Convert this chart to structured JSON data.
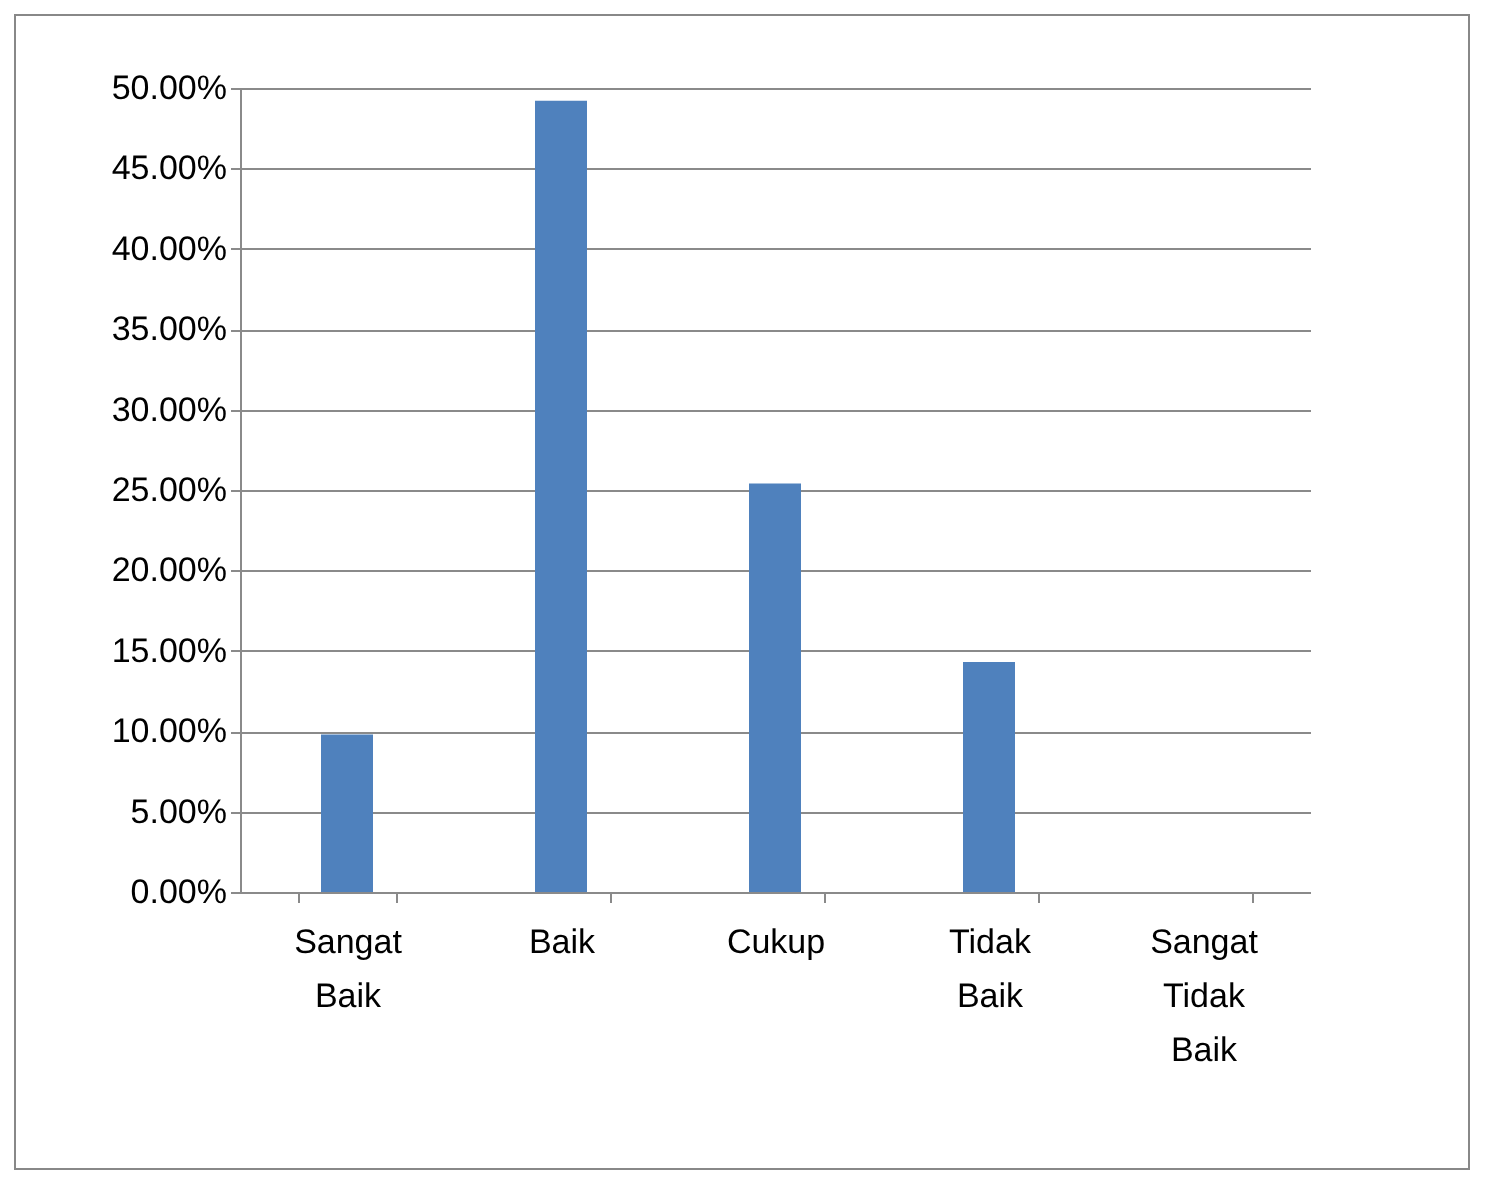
{
  "chart_data": {
    "type": "bar",
    "categories": [
      "Sangat Baik",
      "Baik",
      "Cukup",
      "Tidak Baik",
      "Sangat Tidak Baik"
    ],
    "values": [
      9.8,
      49.2,
      25.4,
      14.3,
      0
    ],
    "color": "#4f81bd",
    "ylim": [
      0,
      50
    ],
    "yticks": [
      {
        "value": 0,
        "label": "0.00%"
      },
      {
        "value": 5,
        "label": "5.00%"
      },
      {
        "value": 10,
        "label": "10.00%"
      },
      {
        "value": 15,
        "label": "15.00%"
      },
      {
        "value": 20,
        "label": "20.00%"
      },
      {
        "value": 25,
        "label": "25.00%"
      },
      {
        "value": 30,
        "label": "30.00%"
      },
      {
        "value": 35,
        "label": "35.00%"
      },
      {
        "value": 40,
        "label": "40.00%"
      },
      {
        "value": 45,
        "label": "45.00%"
      },
      {
        "value": 50,
        "label": "50.00%"
      }
    ],
    "grid": "y"
  }
}
